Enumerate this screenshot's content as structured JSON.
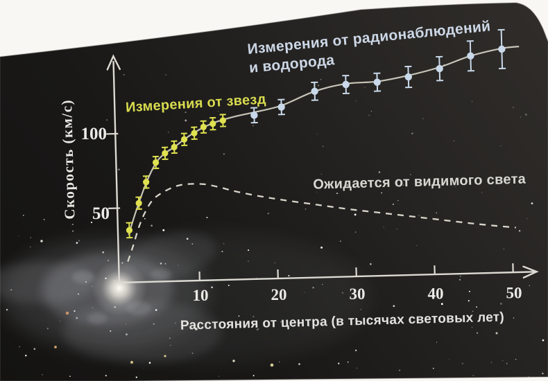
{
  "chart_data": {
    "type": "scatter",
    "title": "",
    "xlabel": "Расстояния от центра (в тысячах световых лет)",
    "ylabel": "Скорость (км/с)",
    "x_ticks": [
      10,
      20,
      30,
      40,
      50
    ],
    "y_ticks": [
      50,
      100
    ],
    "xlim": [
      0,
      53
    ],
    "ylim": [
      0,
      165
    ],
    "grid": false,
    "legend_position": "annotations-on-plot",
    "series": [
      {
        "name": "Измерения от звезд",
        "label_color": "#d9dc4e",
        "color": "#dfe14f",
        "marker": "circle",
        "marker_radius": 4.6,
        "error_cap": 4.5,
        "points": [
          {
            "x": 1.2,
            "v": 35,
            "err": 5
          },
          {
            "x": 2.5,
            "v": 53,
            "err": 4
          },
          {
            "x": 3.5,
            "v": 67,
            "err": 4
          },
          {
            "x": 4.8,
            "v": 80,
            "err": 4
          },
          {
            "x": 6.0,
            "v": 86,
            "err": 4
          },
          {
            "x": 7.2,
            "v": 90,
            "err": 4
          },
          {
            "x": 8.5,
            "v": 95,
            "err": 4
          },
          {
            "x": 9.8,
            "v": 99,
            "err": 4
          },
          {
            "x": 11.0,
            "v": 103,
            "err": 4
          },
          {
            "x": 12.2,
            "v": 105,
            "err": 4
          },
          {
            "x": 13.5,
            "v": 107,
            "err": 4
          }
        ]
      },
      {
        "name": "Измерения от радионаблюдений и водорода",
        "name_lines": [
          "Измерения от радионаблюдений",
          "и водорода"
        ],
        "label_color": "#ccd7e6",
        "color": "#c9d9ea",
        "marker": "circle",
        "marker_radius": 5.2,
        "error_cap": 5,
        "points": [
          {
            "x": 17.5,
            "v": 110,
            "err": 5
          },
          {
            "x": 21.0,
            "v": 115,
            "err": 5
          },
          {
            "x": 25.3,
            "v": 125,
            "err": 6
          },
          {
            "x": 29.3,
            "v": 129,
            "err": 6
          },
          {
            "x": 33.3,
            "v": 130,
            "err": 6
          },
          {
            "x": 37.3,
            "v": 133,
            "err": 7
          },
          {
            "x": 41.3,
            "v": 138,
            "err": 8
          },
          {
            "x": 45.3,
            "v": 146,
            "err": 10
          },
          {
            "x": 49.3,
            "v": 150,
            "err": 13
          }
        ]
      }
    ],
    "fit_curve": {
      "color": "#c7c4b8",
      "points": [
        [
          1.1,
          32
        ],
        [
          2,
          46
        ],
        [
          3,
          60
        ],
        [
          4,
          72
        ],
        [
          5,
          81
        ],
        [
          6,
          86
        ],
        [
          7.2,
          90
        ],
        [
          8.5,
          95
        ],
        [
          10,
          100
        ],
        [
          12,
          105
        ],
        [
          13.5,
          107.5
        ],
        [
          15.5,
          110
        ],
        [
          17.5,
          112
        ],
        [
          21,
          116
        ],
        [
          25.3,
          125
        ],
        [
          29.3,
          129.5
        ],
        [
          33.3,
          130.5
        ],
        [
          37.3,
          134
        ],
        [
          41.3,
          139
        ],
        [
          45.3,
          146
        ],
        [
          49.3,
          150.5
        ],
        [
          51.5,
          151.5
        ]
      ]
    },
    "expected_curve": {
      "name": "Ожидается от видимого света",
      "label_color": "#d8d8d2",
      "style": "dashed",
      "color": "#d8d5ca",
      "points": [
        [
          0.9,
          14
        ],
        [
          1.6,
          24
        ],
        [
          2.5,
          38
        ],
        [
          3.5,
          49
        ],
        [
          4.5,
          56
        ],
        [
          6,
          61
        ],
        [
          7.5,
          64
        ],
        [
          9,
          65
        ],
        [
          11,
          64.5
        ],
        [
          13,
          62
        ],
        [
          15,
          59
        ],
        [
          18,
          55.5
        ],
        [
          21,
          52.5
        ],
        [
          25,
          49
        ],
        [
          29,
          45.5
        ],
        [
          33,
          42.5
        ],
        [
          37,
          39.5
        ],
        [
          41,
          36.5
        ],
        [
          45,
          33.5
        ],
        [
          48,
          31.5
        ],
        [
          50.5,
          30
        ]
      ]
    },
    "colors": {
      "axis": "#dcdad2",
      "tick_text": "#eceae6",
      "page_black": "#242322",
      "photo_white": "#f8f7f4"
    }
  }
}
